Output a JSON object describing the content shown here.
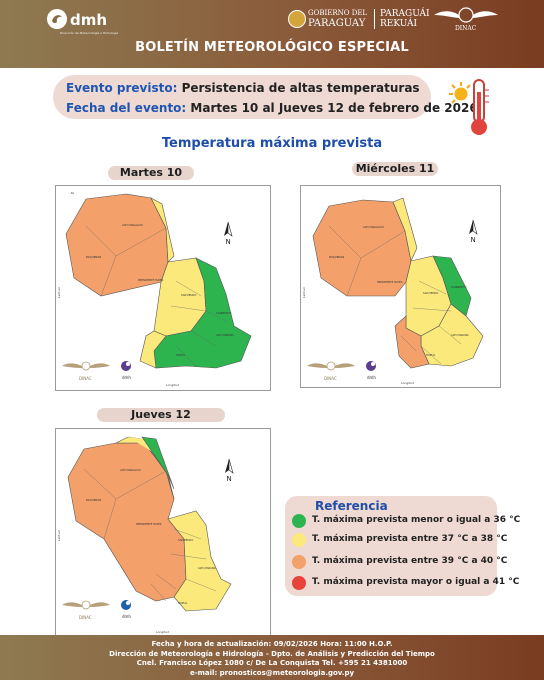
{
  "header": {
    "dmh_logo_text": "dmh",
    "dmh_logo_subtitle": "Dirección de Meteorología e Hidrología",
    "gov_line1": "GOBIERNO DEL",
    "gov_line2": "PARAGUAY",
    "gov_line3": "PARAGUÁI",
    "gov_line4": "REKUÁI",
    "dinac_label": "DINAC",
    "title": "BOLETÍN METEOROLÓGICO ESPECIAL"
  },
  "event": {
    "label1": "Evento previsto:",
    "value1": "Persistencia de altas temperaturas",
    "label2": "Fecha del evento:",
    "value2": "Martes 10 al Jueves 12 de febrero de 2026."
  },
  "section_title": "Temperatura máxima prevista",
  "maps": [
    {
      "day": "Martes 10"
    },
    {
      "day": "Miércoles 11"
    },
    {
      "day": "Jueves 12"
    }
  ],
  "map_common": {
    "north_label": "N",
    "dinac_label": "DINAC",
    "dmh_label": "dmh"
  },
  "legend": {
    "title": "Referencia",
    "items": [
      {
        "color": "#2db44f",
        "text": "T. máxima prevista menor o igual a 36 °C"
      },
      {
        "color": "#fbe97c",
        "text": "T. máxima prevista entre  37 °C a  38 °C"
      },
      {
        "color": "#f3a06a",
        "text": "T. máxima prevista entre  39 °C a  40 °C"
      },
      {
        "color": "#e8433b",
        "text": "T. máxima prevista mayor o igual a 41 °C"
      }
    ]
  },
  "footer": {
    "line1": "Fecha y hora de actualización: 09/02/2026 Hora: 11:00 H.O.P.",
    "line2": "Dirección de Meteorología e Hidrología - Dpto. de Análisis y Predicción del Tiempo",
    "line3": "Cnel. Francisco López 1080 c/ De La Conquista Tel. +595 21 4381000",
    "line4": "e-mail: pronosticos@meteorologia.gov.py"
  }
}
